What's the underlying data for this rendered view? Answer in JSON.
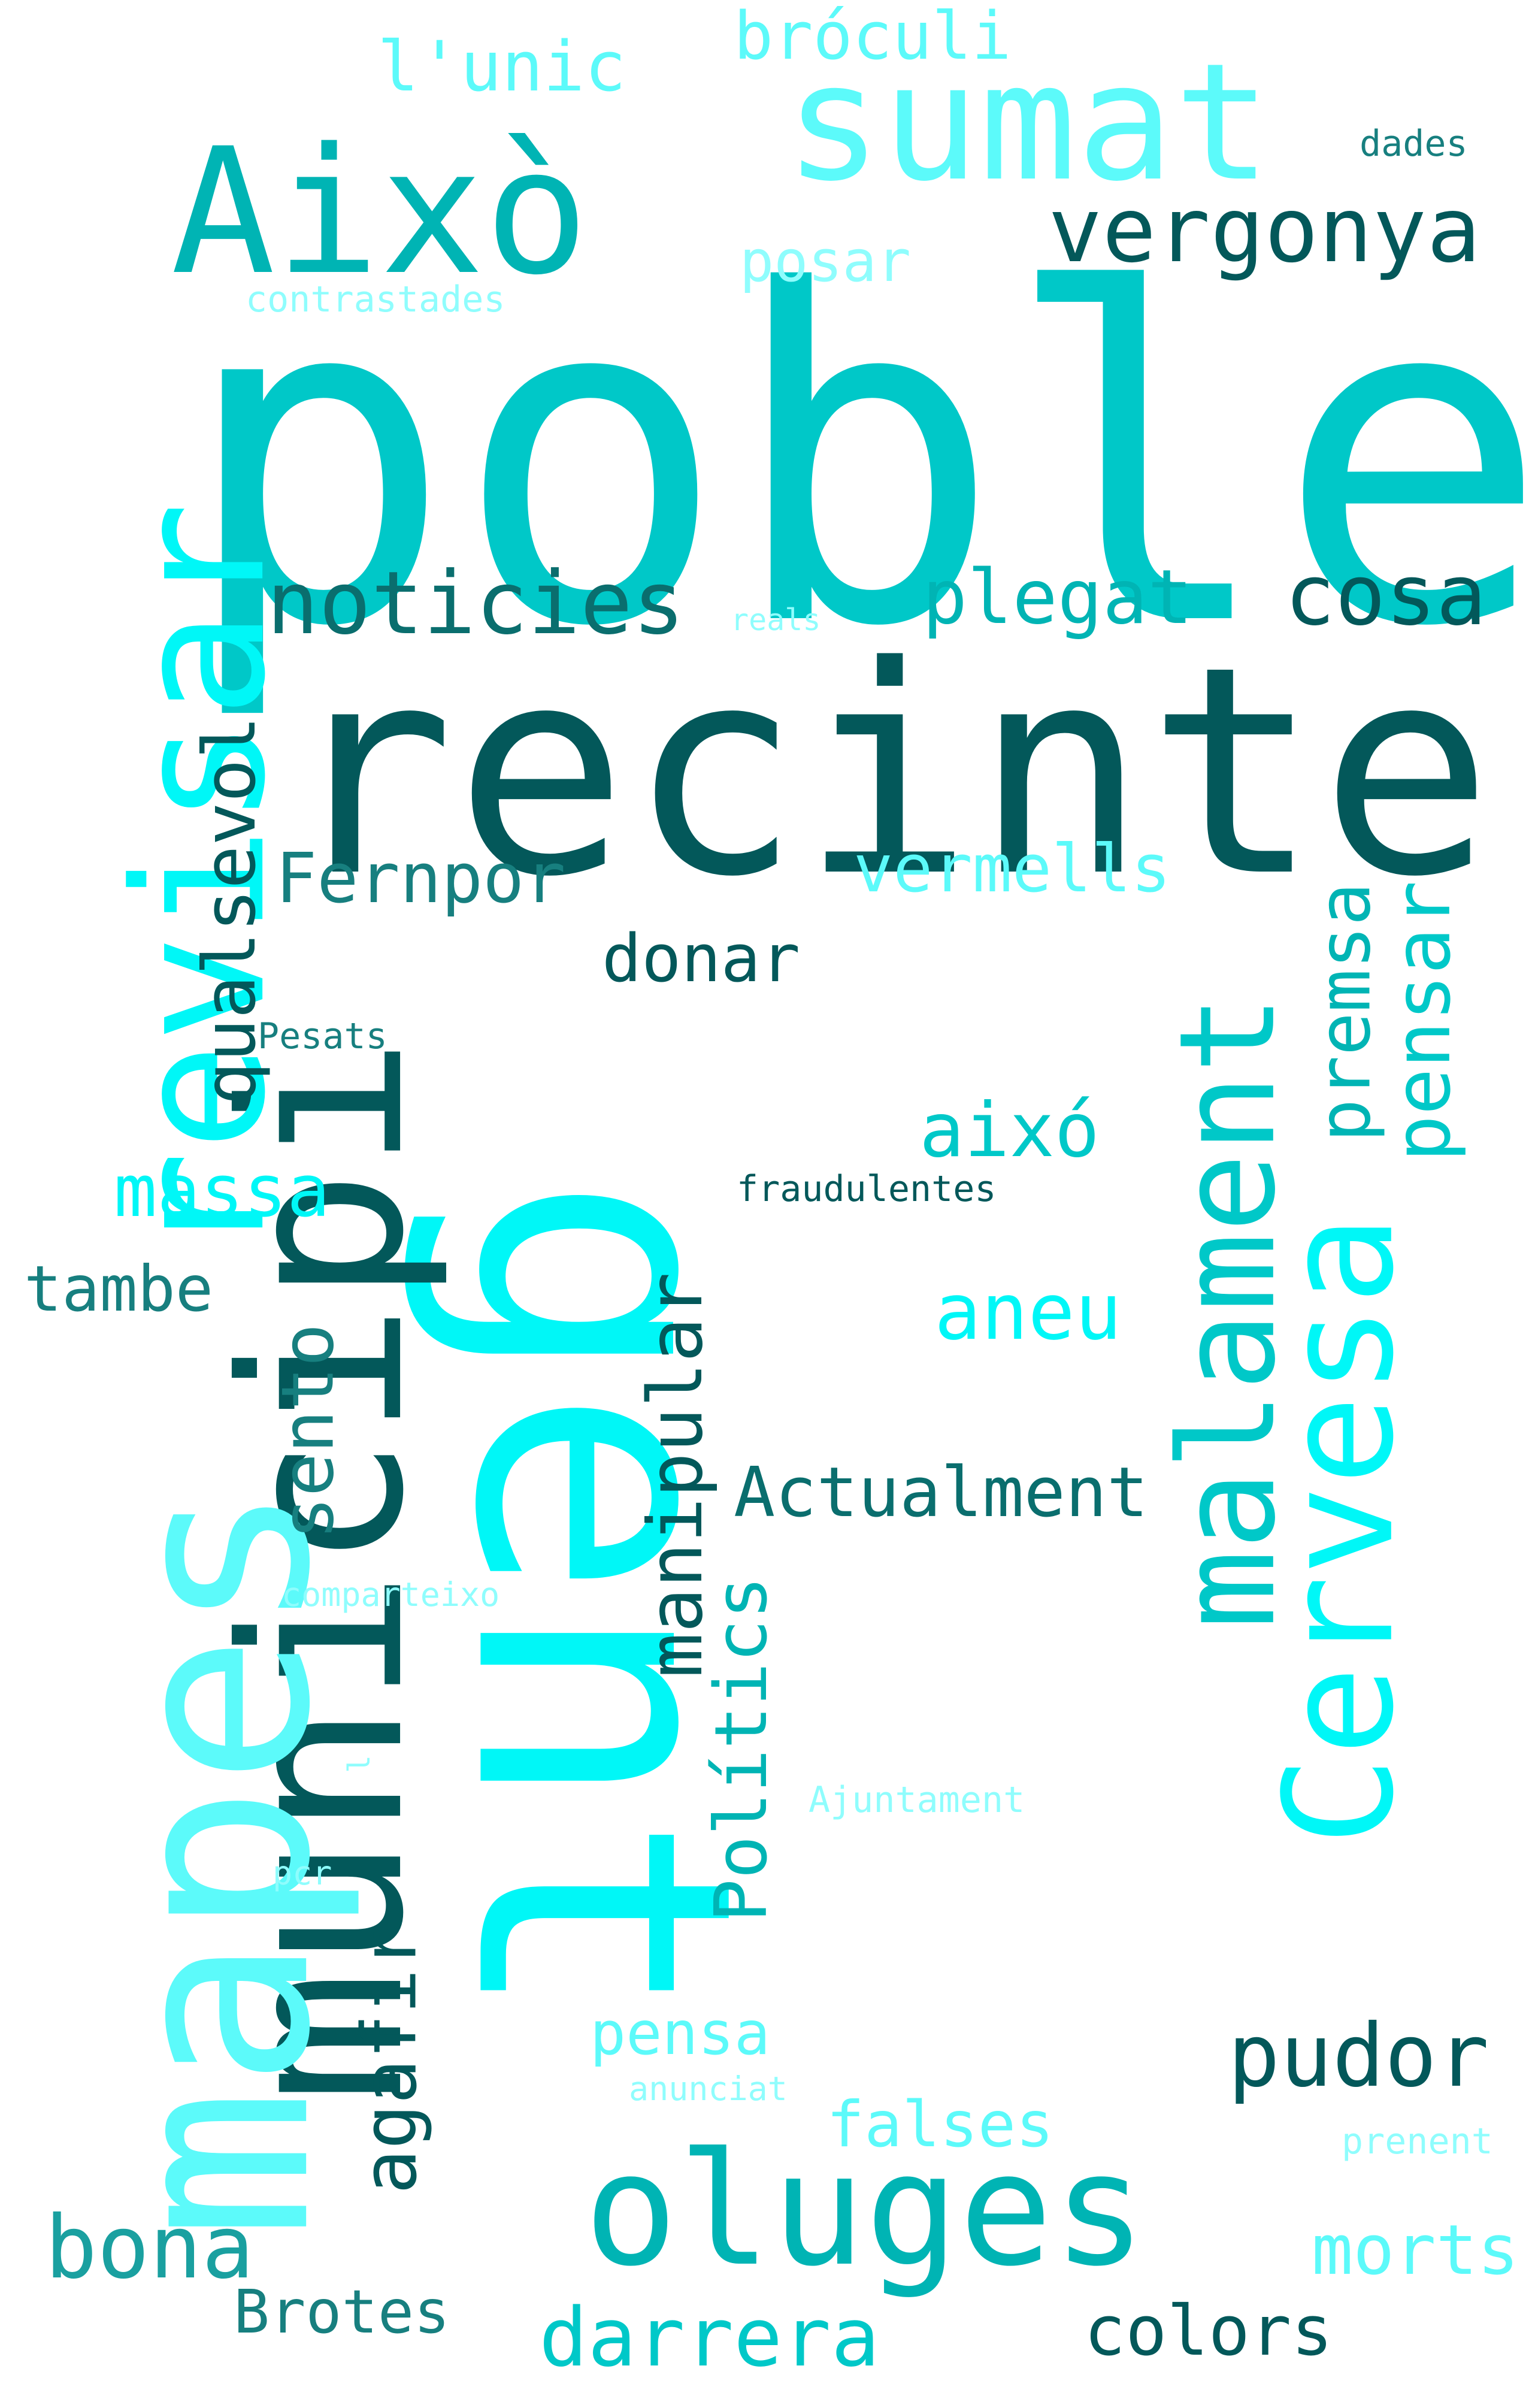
{
  "palette": {
    "dark_teal": "#03585a",
    "teal": "#00b4b4",
    "mid_cyan": "#00c8c8",
    "cyan": "#00f7f7",
    "light_cyan": "#5cfafa",
    "pale_cyan": "#8ffdfd",
    "slate_teal": "#177f7f",
    "sea_teal": "#1aa0a0",
    "deep_teal": "#0a6e6e"
  },
  "words": [
    {
      "text": "poble",
      "color": "mid_cyan"
    },
    {
      "text": "recinte",
      "color": "dark_teal"
    },
    {
      "text": "gent",
      "color": "cyan"
    },
    {
      "text": "municipi",
      "color": "dark_teal"
    },
    {
      "text": "mapes",
      "color": "light_cyan"
    },
    {
      "text": "revisar",
      "color": "cyan"
    },
    {
      "text": "Això",
      "color": "teal"
    },
    {
      "text": "sumat",
      "color": "light_cyan"
    },
    {
      "text": "Cervesa",
      "color": "cyan"
    },
    {
      "text": "malament",
      "color": "mid_cyan"
    },
    {
      "text": "oluges",
      "color": "teal"
    },
    {
      "text": "vergonya",
      "color": "dark_teal"
    },
    {
      "text": "noticies",
      "color": "deep_teal"
    },
    {
      "text": "cosa",
      "color": "dark_teal"
    },
    {
      "text": "plegat",
      "color": "teal"
    },
    {
      "text": "l'unic",
      "color": "light_cyan"
    },
    {
      "text": "bróculi",
      "color": "light_cyan"
    },
    {
      "text": "dades",
      "color": "slate_teal"
    },
    {
      "text": "posar",
      "color": "pale_cyan"
    },
    {
      "text": "contrastades",
      "color": "pale_cyan"
    },
    {
      "text": "reals",
      "color": "pale_cyan"
    },
    {
      "text": "qualsevol",
      "color": "dark_teal"
    },
    {
      "text": "Fernpor",
      "color": "slate_teal"
    },
    {
      "text": "vermells",
      "color": "light_cyan"
    },
    {
      "text": "premsa",
      "color": "teal"
    },
    {
      "text": "pensar",
      "color": "mid_cyan"
    },
    {
      "text": "donar",
      "color": "dark_teal"
    },
    {
      "text": "Pesats",
      "color": "slate_teal"
    },
    {
      "text": "aixó",
      "color": "mid_cyan"
    },
    {
      "text": "massa",
      "color": "cyan"
    },
    {
      "text": "fraudulentes",
      "color": "dark_teal"
    },
    {
      "text": "tambe",
      "color": "slate_teal"
    },
    {
      "text": "aneu",
      "color": "cyan"
    },
    {
      "text": "sento",
      "color": "slate_teal"
    },
    {
      "text": "manipular",
      "color": "dark_teal"
    },
    {
      "text": "Actualment",
      "color": "deep_teal"
    },
    {
      "text": "Polítics",
      "color": "teal"
    },
    {
      "text": "comparteixo",
      "color": "pale_cyan"
    },
    {
      "text": "l",
      "color": "pale_cyan"
    },
    {
      "text": "Ajuntament",
      "color": "pale_cyan"
    },
    {
      "text": "pcr",
      "color": "pale_cyan"
    },
    {
      "text": "agafir",
      "color": "dark_teal"
    },
    {
      "text": "pensa",
      "color": "light_cyan"
    },
    {
      "text": "pudor",
      "color": "dark_teal"
    },
    {
      "text": "anunciat",
      "color": "pale_cyan"
    },
    {
      "text": "falses",
      "color": "light_cyan"
    },
    {
      "text": "prenent",
      "color": "pale_cyan"
    },
    {
      "text": "bona",
      "color": "sea_teal"
    },
    {
      "text": "morts",
      "color": "light_cyan"
    },
    {
      "text": "Brotes",
      "color": "slate_teal"
    },
    {
      "text": "darrera",
      "color": "mid_cyan"
    },
    {
      "text": "colors",
      "color": "dark_teal"
    }
  ]
}
